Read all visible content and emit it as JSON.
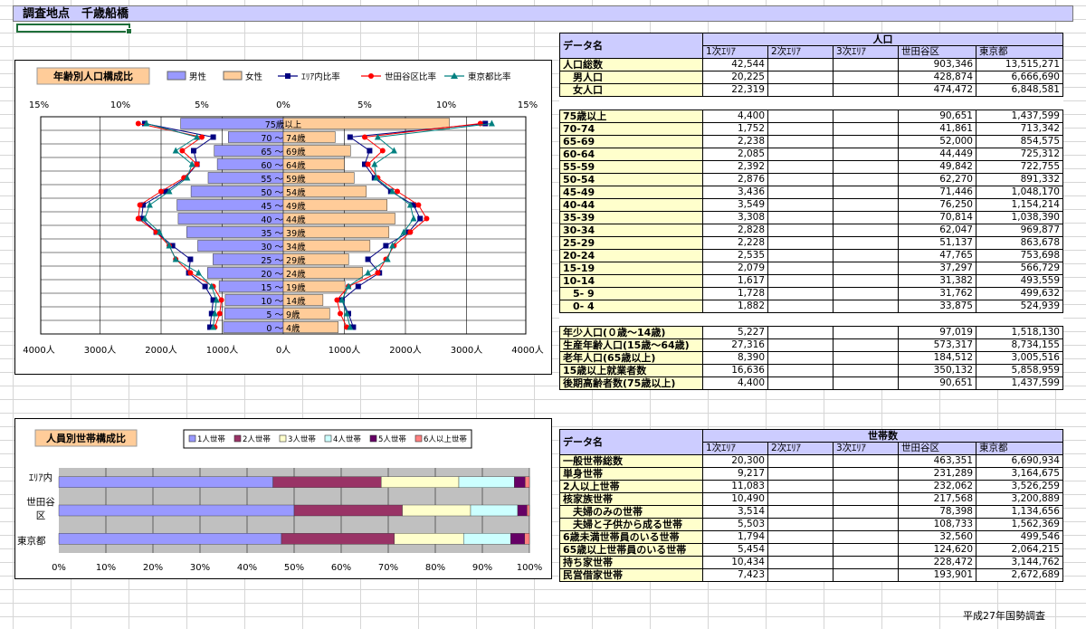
{
  "title": "調査地点　千歳船橋",
  "footer": "平成27年国勢調査",
  "pyramid": {
    "title": "年齢別人口構成比",
    "legend": [
      {
        "name": "男性",
        "color": "#9999ff",
        "kind": "box"
      },
      {
        "name": "女性",
        "color": "#ffcc99",
        "kind": "box"
      },
      {
        "name": "ｴﾘｱ内比率",
        "color": "#000080",
        "kind": "square"
      },
      {
        "name": "世田谷区比率",
        "color": "#ff0000",
        "kind": "circle"
      },
      {
        "name": "東京都比率",
        "color": "#008080",
        "kind": "triangle"
      }
    ],
    "top_ticks": [
      "15%",
      "10%",
      "5%",
      "0%",
      "5%",
      "10%",
      "15%"
    ],
    "bottom_ticks": [
      "4000人",
      "3000人",
      "2000人",
      "1000人",
      "0人",
      "1000人",
      "2000人",
      "3000人",
      "4000人"
    ]
  },
  "chart_data": [
    {
      "type": "bar",
      "title": "年齢別人口構成比",
      "orientation": "horizontal-pyramid",
      "categories": [
        "0 ～ 4歳",
        "5 ～ 9歳",
        "10 ～ 14歳",
        "15 ～ 19歳",
        "20 ～ 24歳",
        "25 ～ 29歳",
        "30 ～ 34歳",
        "35 ～ 39歳",
        "40 ～ 44歳",
        "45 ～ 49歳",
        "50 ～ 54歳",
        "55 ～ 59歳",
        "60 ～ 64歳",
        "65 ～ 69歳",
        "70 ～ 74歳",
        "75歳以上"
      ],
      "xlim_people": [
        -4000,
        4000
      ],
      "xlim_percent": [
        -15,
        15
      ],
      "series": [
        {
          "name": "男性",
          "values": [
            980,
            960,
            950,
            1050,
            1240,
            1150,
            1400,
            1580,
            1720,
            1740,
            1510,
            1230,
            1080,
            1130,
            900,
            1680
          ]
        },
        {
          "name": "女性",
          "values": [
            900,
            760,
            650,
            1010,
            1300,
            1070,
            1420,
            1730,
            1830,
            1700,
            1360,
            1160,
            1000,
            1100,
            850,
            2720
          ]
        },
        {
          "name": "ｴﾘｱ内比率",
          "values_left": [
            4.5,
            4.4,
            4.3,
            4.8,
            5.8,
            5.7,
            6.8,
            7.8,
            8.7,
            8.6,
            7.2,
            6.0,
            5.3,
            5.5,
            4.3,
            8.5
          ],
          "values_right": [
            4.3,
            4.0,
            3.6,
            4.6,
            5.9,
            5.2,
            6.3,
            7.7,
            8.4,
            8.0,
            6.6,
            5.6,
            5.0,
            5.3,
            4.1,
            12.4
          ]
        },
        {
          "name": "世田谷区比率",
          "values_left": [
            4.2,
            3.9,
            3.8,
            4.3,
            5.7,
            6.6,
            7.0,
            7.8,
            8.9,
            8.8,
            7.5,
            6.1,
            5.3,
            6.2,
            5.0,
            8.9
          ],
          "values_right": [
            3.9,
            3.5,
            3.3,
            4.0,
            5.8,
            6.3,
            6.8,
            7.8,
            8.8,
            8.3,
            7.0,
            5.8,
            5.2,
            6.1,
            5.0,
            12.1
          ]
        },
        {
          "name": "東京都比率",
          "values_left": [
            4.3,
            4.2,
            4.1,
            4.4,
            5.2,
            6.6,
            7.0,
            7.6,
            8.5,
            8.2,
            7.0,
            5.9,
            5.6,
            6.6,
            5.3,
            8.4
          ],
          "values_right": [
            4.1,
            3.9,
            3.6,
            4.0,
            5.2,
            6.4,
            6.7,
            7.4,
            8.0,
            7.8,
            6.7,
            5.7,
            5.6,
            6.8,
            5.8,
            12.8
          ]
        }
      ]
    },
    {
      "type": "bar",
      "title": "人員別世帯構成比",
      "orientation": "horizontal-stacked-100",
      "categories": [
        "ｴﾘｱ内",
        "世田谷区",
        "東京都"
      ],
      "xlim": [
        0,
        100
      ],
      "series": [
        {
          "name": "1人世帯",
          "values": [
            45.5,
            50.0,
            47.3
          ]
        },
        {
          "name": "2人世帯",
          "values": [
            23.0,
            23.0,
            24.0
          ]
        },
        {
          "name": "3人世帯",
          "values": [
            16.5,
            14.5,
            14.7
          ]
        },
        {
          "name": "4人世帯",
          "values": [
            11.8,
            10.0,
            10.0
          ]
        },
        {
          "name": "5人世帯",
          "values": [
            2.3,
            2.0,
            3.0
          ]
        },
        {
          "name": "6人以上世帯",
          "values": [
            0.9,
            0.5,
            1.0
          ]
        }
      ]
    }
  ],
  "household_chart": {
    "title": "人員別世帯構成比",
    "legend": [
      {
        "name": "1人世帯",
        "color": "#9999ff"
      },
      {
        "name": "2人世帯",
        "color": "#993366"
      },
      {
        "name": "3人世帯",
        "color": "#ffffcc"
      },
      {
        "name": "4人世帯",
        "color": "#ccffff"
      },
      {
        "name": "5人世帯",
        "color": "#660066"
      },
      {
        "name": "6人以上世帯",
        "color": "#ff8080"
      }
    ],
    "row_labels": [
      "ｴﾘｱ内",
      "世田谷",
      "区",
      "東京都"
    ],
    "x_ticks": [
      "0%",
      "10%",
      "20%",
      "30%",
      "40%",
      "50%",
      "60%",
      "70%",
      "80%",
      "90%",
      "100%"
    ]
  },
  "population_table": {
    "header_label": "データ名",
    "group_header": "人口",
    "columns": [
      "1次ｴﾘｱ",
      "2次ｴﾘｱ",
      "3次ｴﾘｱ",
      "世田谷区",
      "東京都"
    ],
    "summary_rows": [
      {
        "label": "人口総数",
        "v": [
          "42,544",
          "",
          "",
          "903,346",
          "13,515,271"
        ]
      },
      {
        "label": "　男人口",
        "v": [
          "20,225",
          "",
          "",
          "428,874",
          "6,666,690"
        ]
      },
      {
        "label": "　女人口",
        "v": [
          "22,319",
          "",
          "",
          "474,472",
          "6,848,581"
        ]
      }
    ],
    "age_rows": [
      {
        "label": "75歳以上",
        "v": [
          "4,400",
          "",
          "",
          "90,651",
          "1,437,599"
        ]
      },
      {
        "label": "70-74",
        "v": [
          "1,752",
          "",
          "",
          "41,861",
          "713,342"
        ]
      },
      {
        "label": "65-69",
        "v": [
          "2,238",
          "",
          "",
          "52,000",
          "854,575"
        ]
      },
      {
        "label": "60-64",
        "v": [
          "2,085",
          "",
          "",
          "44,449",
          "725,312"
        ]
      },
      {
        "label": "55-59",
        "v": [
          "2,392",
          "",
          "",
          "49,842",
          "722,755"
        ]
      },
      {
        "label": "50-54",
        "v": [
          "2,876",
          "",
          "",
          "62,270",
          "891,332"
        ]
      },
      {
        "label": "45-49",
        "v": [
          "3,436",
          "",
          "",
          "71,446",
          "1,048,170"
        ]
      },
      {
        "label": "40-44",
        "v": [
          "3,549",
          "",
          "",
          "76,250",
          "1,154,214"
        ]
      },
      {
        "label": "35-39",
        "v": [
          "3,308",
          "",
          "",
          "70,814",
          "1,038,390"
        ]
      },
      {
        "label": "30-34",
        "v": [
          "2,828",
          "",
          "",
          "62,047",
          "969,877"
        ]
      },
      {
        "label": "25-29",
        "v": [
          "2,228",
          "",
          "",
          "51,137",
          "863,678"
        ]
      },
      {
        "label": "20-24",
        "v": [
          "2,535",
          "",
          "",
          "47,765",
          "753,698"
        ]
      },
      {
        "label": "15-19",
        "v": [
          "2,079",
          "",
          "",
          "37,297",
          "566,729"
        ]
      },
      {
        "label": "10-14",
        "v": [
          "1,617",
          "",
          "",
          "31,382",
          "493,559"
        ]
      },
      {
        "label": "　5- 9",
        "v": [
          "1,728",
          "",
          "",
          "31,762",
          "499,632"
        ]
      },
      {
        "label": "　0- 4",
        "v": [
          "1,882",
          "",
          "",
          "33,875",
          "524,939"
        ]
      }
    ],
    "bracket_rows": [
      {
        "label": "年少人口(０歳～14歳)",
        "v": [
          "5,227",
          "",
          "",
          "97,019",
          "1,518,130"
        ]
      },
      {
        "label": "生産年齢人口(15歳～64歳)",
        "v": [
          "27,316",
          "",
          "",
          "573,317",
          "8,734,155"
        ]
      },
      {
        "label": "老年人口(65歳以上)",
        "v": [
          "8,390",
          "",
          "",
          "184,512",
          "3,005,516"
        ]
      },
      {
        "label": "15歳以上就業者数",
        "v": [
          "16,636",
          "",
          "",
          "350,132",
          "5,858,959"
        ]
      },
      {
        "label": "後期高齢者数(75歳以上)",
        "v": [
          "4,400",
          "",
          "",
          "90,651",
          "1,437,599"
        ]
      }
    ]
  },
  "household_table": {
    "header_label": "データ名",
    "group_header": "世帯数",
    "columns": [
      "1次ｴﾘｱ",
      "2次ｴﾘｱ",
      "3次ｴﾘｱ",
      "世田谷区",
      "東京都"
    ],
    "rows": [
      {
        "label": "一般世帯総数",
        "v": [
          "20,300",
          "",
          "",
          "463,351",
          "6,690,934"
        ]
      },
      {
        "label": "単身世帯",
        "v": [
          "9,217",
          "",
          "",
          "231,289",
          "3,164,675"
        ]
      },
      {
        "label": "2人以上世帯",
        "v": [
          "11,083",
          "",
          "",
          "232,062",
          "3,526,259"
        ]
      },
      {
        "label": "核家族世帯",
        "v": [
          "10,490",
          "",
          "",
          "217,568",
          "3,200,889"
        ]
      },
      {
        "label": "　夫婦のみの世帯",
        "v": [
          "3,514",
          "",
          "",
          "78,398",
          "1,134,656"
        ]
      },
      {
        "label": "　夫婦と子供から成る世帯",
        "v": [
          "5,503",
          "",
          "",
          "108,733",
          "1,562,369"
        ]
      },
      {
        "label": "6歳未満世帯員のいる世帯",
        "v": [
          "1,794",
          "",
          "",
          "32,560",
          "499,546"
        ]
      },
      {
        "label": "65歳以上世帯員のいる世帯",
        "v": [
          "5,454",
          "",
          "",
          "124,620",
          "2,064,215"
        ]
      },
      {
        "label": "持ち家世帯",
        "v": [
          "10,434",
          "",
          "",
          "228,472",
          "3,144,762"
        ]
      },
      {
        "label": "民営借家世帯",
        "v": [
          "7,423",
          "",
          "",
          "193,901",
          "2,672,689"
        ]
      }
    ]
  }
}
